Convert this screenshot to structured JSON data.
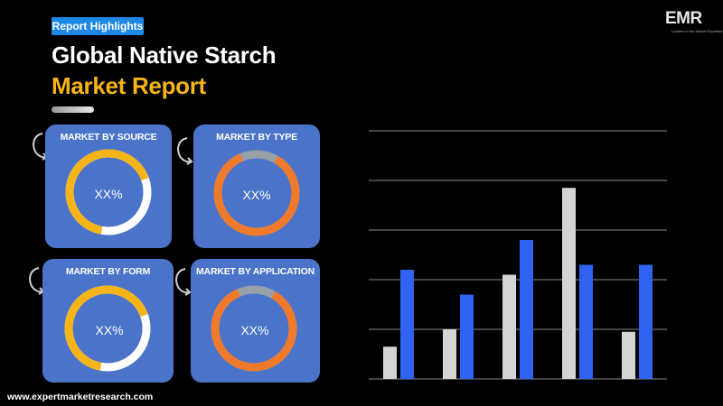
{
  "header": {
    "badge": "Report Highlights",
    "title_line1": "Global Native Starch",
    "title_line2": "Market Report"
  },
  "logo": {
    "text": "EMR",
    "tagline": "Leaders in the Market Expertise"
  },
  "cards": [
    {
      "title": "MARKET BY SOURCE",
      "value": "XX%",
      "ring_color": "#f5b418",
      "ring_remainder": "#ffffff"
    },
    {
      "title": "MARKET BY TYPE",
      "value": "XX%",
      "ring_color": "#f07a2c",
      "ring_remainder": "#9aa0a8"
    },
    {
      "title": "MARKET BY FORM",
      "value": "XX%",
      "ring_color": "#f5b418",
      "ring_remainder": "#ffffff"
    },
    {
      "title": "MARKET BY APPLICATION",
      "value": "XX%",
      "ring_color": "#f07a2c",
      "ring_remainder": "#9aa0a8"
    }
  ],
  "footer": {
    "url": "www.expertmarketresearch.com"
  },
  "colors": {
    "brand_blue": "#1e88e5",
    "accent_gold": "#f5b418",
    "card_blue": "#4a73c9",
    "bar_gray": "#d4d4d4",
    "bar_blue": "#2f63f0",
    "gridline": "#8a8a8a"
  },
  "chart_data": {
    "type": "bar",
    "title": "",
    "xlabel": "",
    "ylabel": "",
    "categories": [
      "",
      "",
      "",
      "",
      ""
    ],
    "ylim": [
      0,
      5
    ],
    "grid": true,
    "legend": "none",
    "series": [
      {
        "color": "#d4d4d4",
        "values": [
          0.65,
          1.0,
          2.1,
          3.85,
          0.95
        ]
      },
      {
        "color": "#2f63f0",
        "values": [
          2.2,
          1.7,
          2.8,
          2.3,
          2.3
        ]
      }
    ]
  }
}
